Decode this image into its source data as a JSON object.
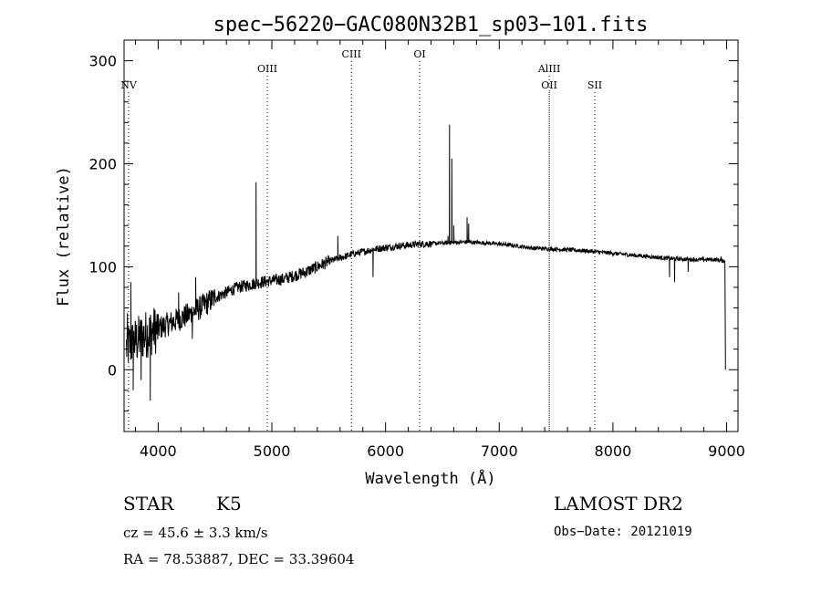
{
  "chart_data": {
    "type": "line",
    "title": "spec−56220−GAC080N32B1_sp03−101.fits",
    "xlabel": "Wavelength (Å)",
    "ylabel": "Flux (relative)",
    "xlim": [
      3700,
      9100
    ],
    "ylim": [
      -60,
      320
    ],
    "xticks": [
      4000,
      5000,
      6000,
      7000,
      8000,
      9000
    ],
    "yticks": [
      0,
      100,
      200,
      300
    ],
    "grid": false,
    "lines": [
      {
        "label": "NV",
        "x": 3740,
        "label_row": 2
      },
      {
        "label": "OIII",
        "x": 4960,
        "label_row": 1
      },
      {
        "label": "CIII",
        "x": 5700,
        "label_row": 0
      },
      {
        "label": "OI",
        "x": 6300,
        "label_row": 0
      },
      {
        "label": "AlIII",
        "x": 7440,
        "label_row": 1
      },
      {
        "label": "OII",
        "x": 7440,
        "label_row": 2
      },
      {
        "label": "SII",
        "x": 7840,
        "label_row": 2
      }
    ],
    "series": [
      {
        "continuum": [
          [
            3700,
            20
          ],
          [
            3900,
            35
          ],
          [
            4100,
            45
          ],
          [
            4300,
            55
          ],
          [
            4500,
            70
          ],
          [
            4700,
            80
          ],
          [
            4900,
            85
          ],
          [
            5100,
            88
          ],
          [
            5300,
            95
          ],
          [
            5500,
            105
          ],
          [
            5700,
            112
          ],
          [
            5900,
            117
          ],
          [
            6100,
            120
          ],
          [
            6300,
            122
          ],
          [
            6500,
            123
          ],
          [
            6700,
            124
          ],
          [
            6900,
            123
          ],
          [
            7100,
            121
          ],
          [
            7300,
            118
          ],
          [
            7500,
            117
          ],
          [
            7700,
            116
          ],
          [
            7900,
            114
          ],
          [
            8100,
            112
          ],
          [
            8300,
            110
          ],
          [
            8500,
            108
          ],
          [
            8700,
            107
          ],
          [
            8900,
            107
          ],
          [
            9000,
            105
          ]
        ],
        "features": [
          [
            3730,
            55
          ],
          [
            3760,
            85
          ],
          [
            3780,
            -20
          ],
          [
            3850,
            -10
          ],
          [
            3930,
            -30
          ],
          [
            4180,
            75
          ],
          [
            4300,
            30
          ],
          [
            4330,
            90
          ],
          [
            4861,
            182
          ],
          [
            4870,
            85
          ],
          [
            5580,
            130
          ],
          [
            5890,
            90
          ],
          [
            6549,
            130
          ],
          [
            6563,
            238
          ],
          [
            6583,
            205
          ],
          [
            6600,
            140
          ],
          [
            6717,
            148
          ],
          [
            6731,
            142
          ],
          [
            8498,
            90
          ],
          [
            8542,
            85
          ],
          [
            8662,
            95
          ],
          [
            8950,
            110
          ],
          [
            8985,
            100
          ],
          [
            8990,
            0
          ]
        ]
      }
    ]
  },
  "info": {
    "object": "STAR",
    "subclass": "K5",
    "survey": "LAMOST DR2",
    "cz": "cz = 45.6 ± 3.3 km/s",
    "obs_date": "Obs−Date: 20121019",
    "coords": "RA =  78.53887, DEC =  33.39604"
  }
}
